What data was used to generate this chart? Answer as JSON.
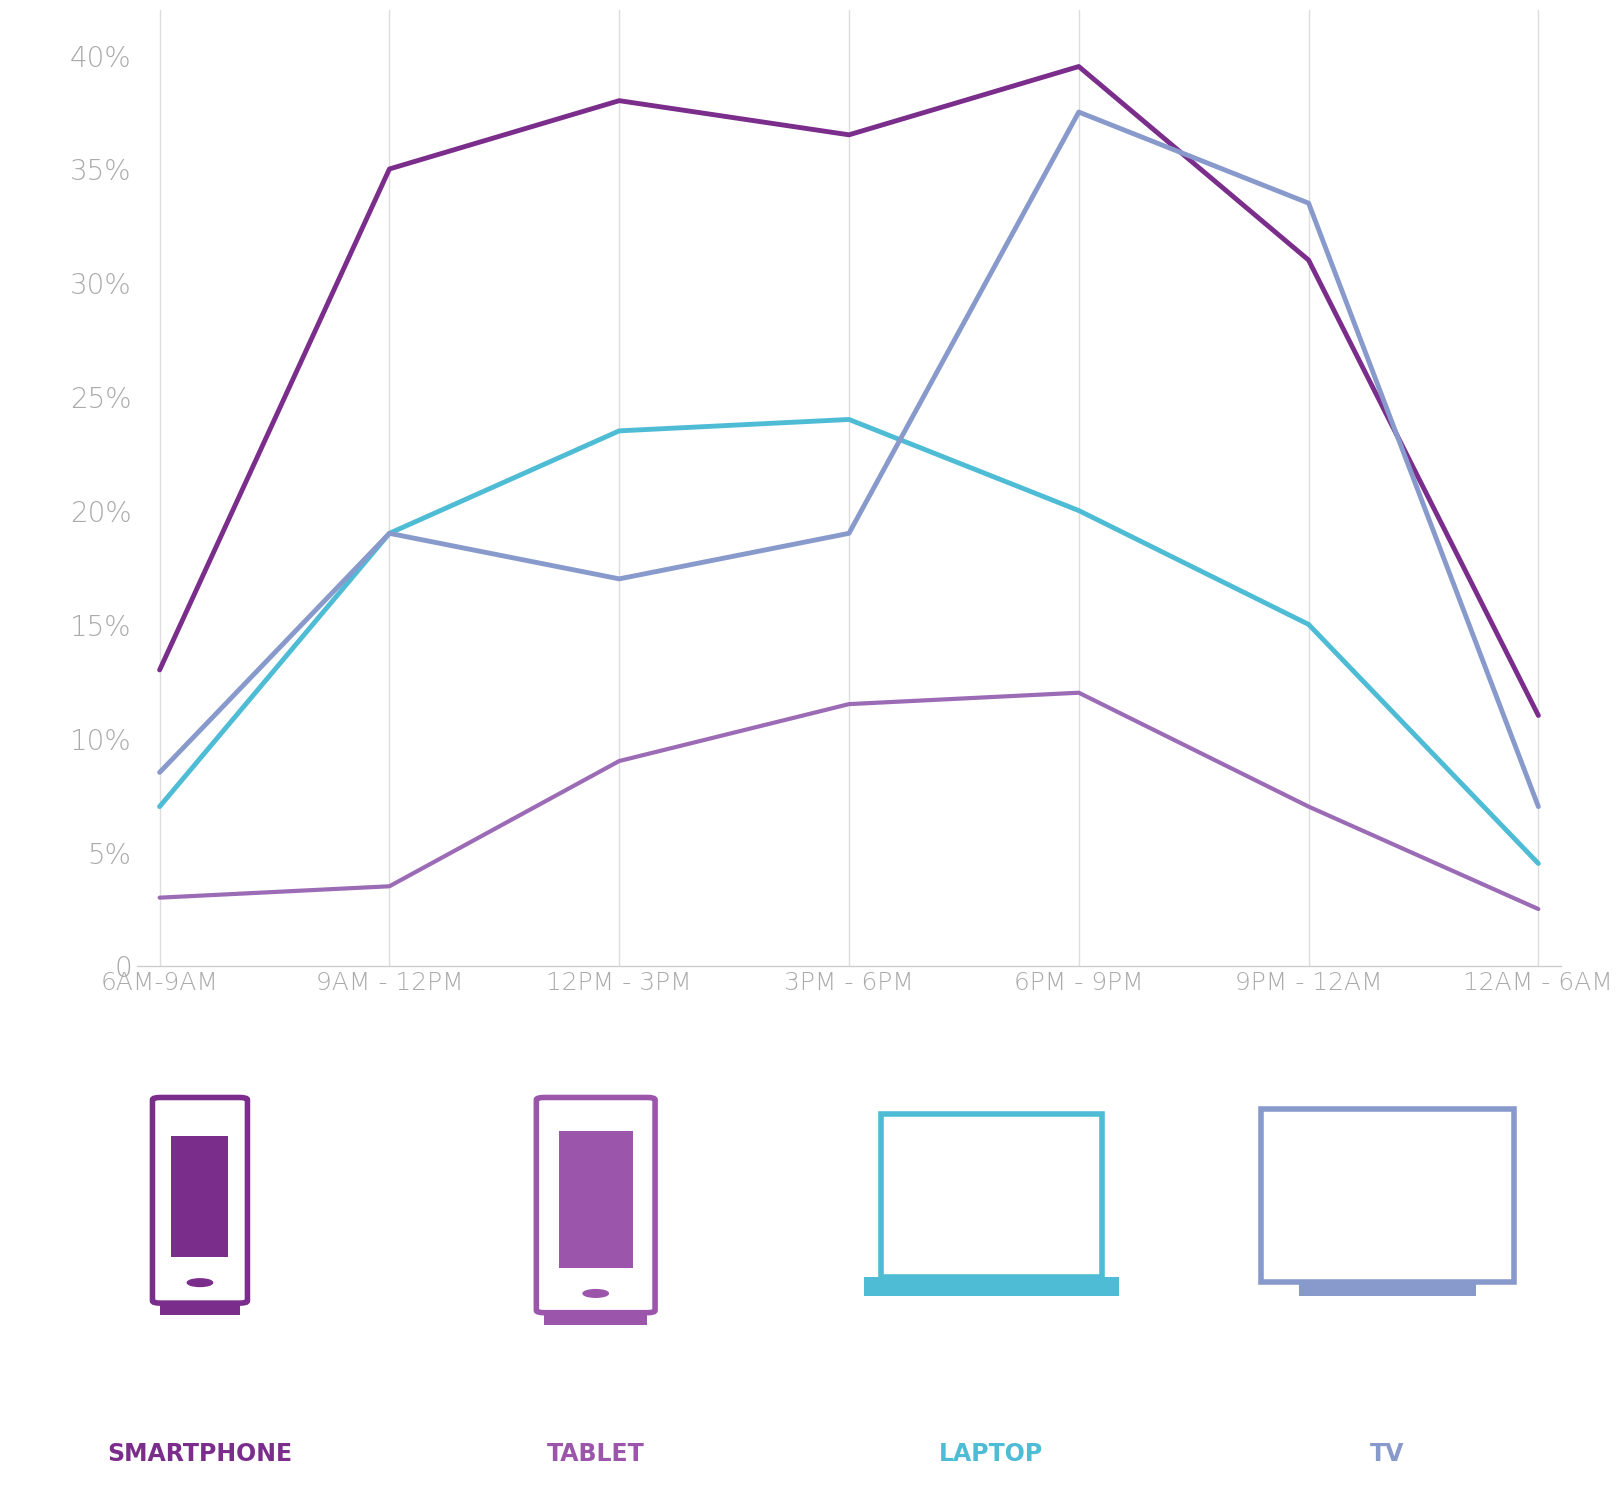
{
  "x_labels": [
    "6AM-9AM",
    "9AM - 12PM",
    "12PM - 3PM",
    "3PM - 6PM",
    "6PM - 9PM",
    "9PM - 12AM",
    "12AM - 6AM"
  ],
  "series": {
    "smartphone": {
      "values": [
        13,
        35,
        38,
        36.5,
        39.5,
        31,
        11
      ],
      "color": "#7B2D8B",
      "linewidth": 3.5,
      "label": "SMARTPHONE"
    },
    "tablet": {
      "values": [
        3,
        3.5,
        9,
        11.5,
        12,
        7,
        2.5
      ],
      "color": "#9B6BB5",
      "linewidth": 3,
      "label": "TABLET"
    },
    "laptop": {
      "values": [
        7,
        19,
        23.5,
        24,
        20,
        15,
        4.5
      ],
      "color": "#4DBCD4",
      "linewidth": 3.5,
      "label": "LAPTOP"
    },
    "tv": {
      "values": [
        8.5,
        19,
        17,
        19,
        37.5,
        33.5,
        7
      ],
      "color": "#8899CC",
      "linewidth": 3.5,
      "label": "TV"
    }
  },
  "ylim": [
    0,
    42
  ],
  "yticks": [
    0,
    5,
    10,
    15,
    20,
    25,
    30,
    35,
    40
  ],
  "ytick_labels": [
    "0",
    "5%",
    "10%",
    "15%",
    "20%",
    "25%",
    "30%",
    "35%",
    "40%"
  ],
  "background_color": "#FFFFFF",
  "grid_color": "#DDDDDD",
  "tick_color": "#AAAAAA",
  "axis_color": "#CCCCCC",
  "legend_items": [
    {
      "label": "SMARTPHONE",
      "color": "#7B2D8B",
      "icon": "smartphone"
    },
    {
      "label": "TABLET",
      "color": "#9B55AA",
      "icon": "tablet"
    },
    {
      "label": "LAPTOP",
      "color": "#4DBCD4",
      "icon": "laptop"
    },
    {
      "label": "TV",
      "color": "#8899CC",
      "icon": "tv"
    }
  ]
}
